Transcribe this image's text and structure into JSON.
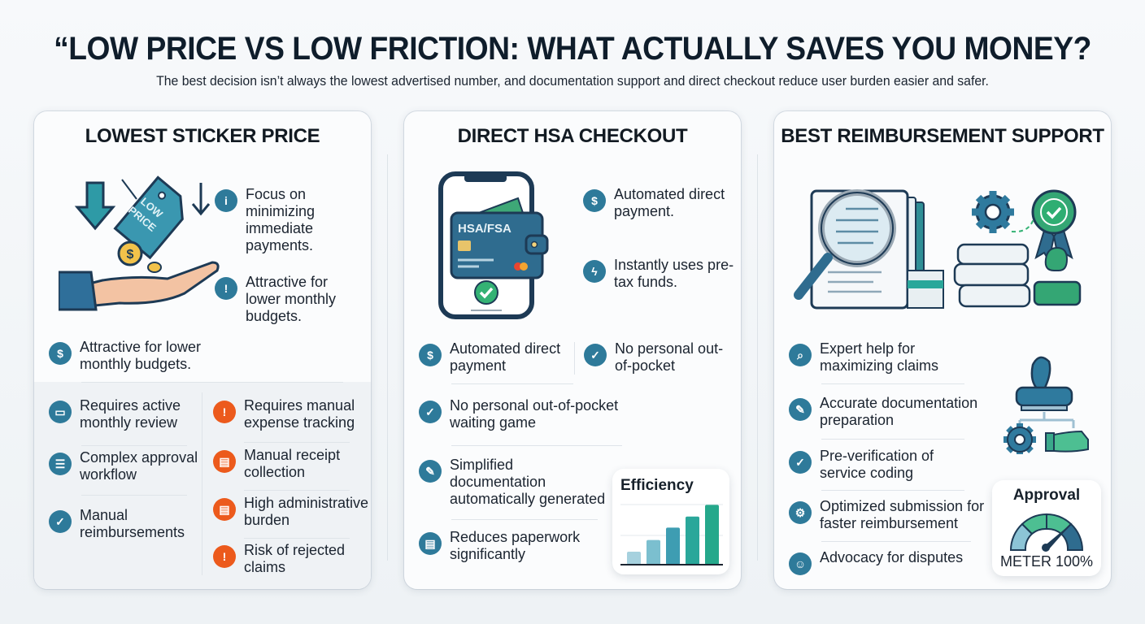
{
  "header": {
    "title": "“LOW PRICE VS LOW FRICTION: WHAT ACTUALLY SAVES YOU MONEY?",
    "subtitle": "The best decision isn’t always the lowest advertised number, and documentation support and direct checkout reduce user burden easier and safer."
  },
  "colors": {
    "teal_blue": "#2e7a9a",
    "orange": "#ec5a1c",
    "green": "#2fae72",
    "navy": "#1d3a55"
  },
  "cards": [
    {
      "title": "LOWEST STICKER PRICE",
      "illustration": "hand-with-low-price-tag",
      "tag_text": "LOW PRICE",
      "top_items": [
        {
          "icon": "info-icon",
          "label": "Focus on minimizing immediate payments."
        },
        {
          "icon": "exclamation-icon",
          "label": "Attractive for lower monthly budgets."
        }
      ],
      "feature_item": {
        "icon": "dollar-icon",
        "label": "Attractive for lower monthly budgets."
      },
      "left_items": [
        {
          "icon": "card-icon",
          "label": "Requires active monthly review"
        },
        {
          "icon": "clipboard-icon",
          "label": "Complex approval workflow"
        },
        {
          "icon": "badge-check-icon",
          "label": "Manual reimbursements"
        }
      ],
      "right_items": [
        {
          "icon": "exclamation-icon",
          "label": "Requires manual expense tracking"
        },
        {
          "icon": "receipt-icon",
          "label": "Manual receipt collection"
        },
        {
          "icon": "clipboard-icon",
          "label": "High administrative burden"
        },
        {
          "icon": "exclamation-icon",
          "label": "Risk of rejected claims"
        }
      ]
    },
    {
      "title": "DIRECT HSA CHECKOUT",
      "illustration": "phone-with-wallet",
      "card_text": "HSA/FSA",
      "top_items": [
        {
          "icon": "dollar-scan-icon",
          "label": "Automated direct payment."
        },
        {
          "icon": "lightning-icon",
          "label": "Instantly uses pre-tax funds."
        }
      ],
      "row_items": [
        {
          "icon": "dollar-cycle-icon",
          "label": "Automated direct payment"
        },
        {
          "icon": "check-icon",
          "label": "No personal out-of-pocket"
        }
      ],
      "list_items": [
        {
          "icon": "check-icon",
          "label": "No personal out-of-pocket waiting game"
        },
        {
          "icon": "document-edit-icon",
          "label": "Simplified documentation automatically generated"
        },
        {
          "icon": "document-icon",
          "label": "Reduces paperwork significantly"
        }
      ],
      "efficiency_chart": {
        "title": "Efficiency",
        "values": [
          20,
          38,
          57,
          74,
          92
        ],
        "colors": [
          "#a6d1de",
          "#7bbfcf",
          "#3e9db2",
          "#2aa79a",
          "#25a88b"
        ]
      }
    },
    {
      "title": "BEST REIMBURSEMENT SUPPORT",
      "illustration": "magnifier-documents-gear-award",
      "list_items": [
        {
          "icon": "search-icon",
          "label": "Expert help for maximizing claims"
        },
        {
          "icon": "document-edit-icon",
          "label": "Accurate documentation preparation"
        },
        {
          "icon": "check-icon",
          "label": "Pre-verification of service coding"
        },
        {
          "icon": "gear-ring-icon",
          "label": "Optimized submission for faster reimbursement"
        },
        {
          "icon": "user-icon",
          "label": "Advocacy for disputes"
        }
      ],
      "approval_meter": {
        "title": "Approval",
        "label": "METER 100%"
      }
    }
  ]
}
